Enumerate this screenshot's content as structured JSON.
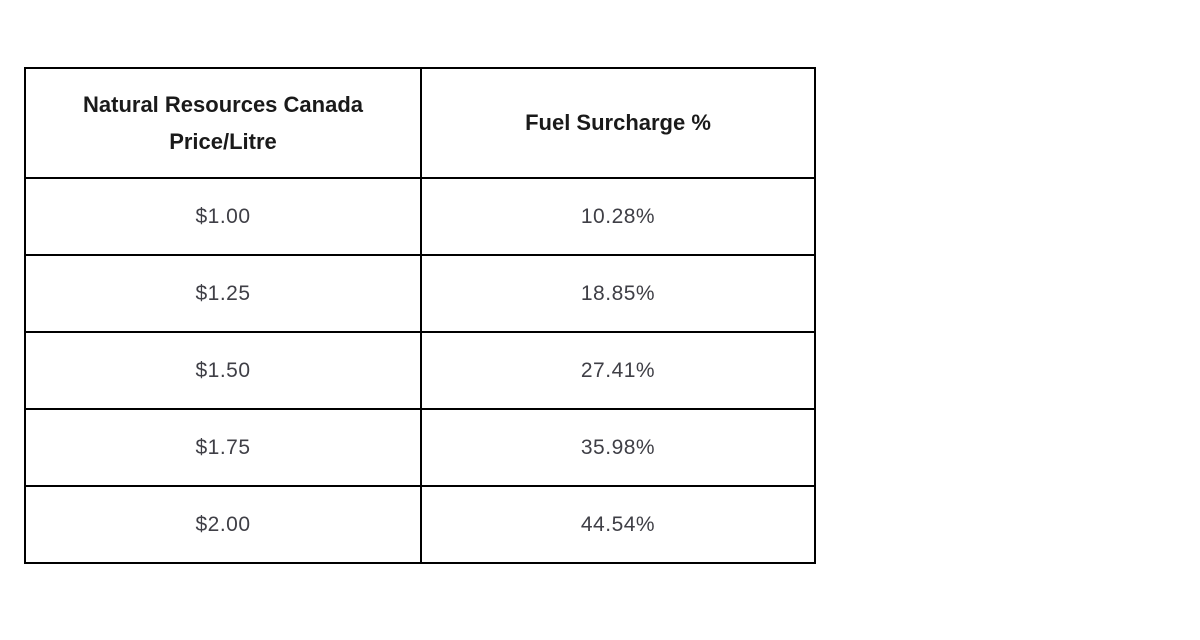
{
  "table": {
    "columns": [
      {
        "label": "Natural Resources Canada Price/Litre"
      },
      {
        "label": "Fuel Surcharge %"
      }
    ],
    "rows": [
      {
        "price": "$1.00",
        "surcharge": "10.28%"
      },
      {
        "price": "$1.25",
        "surcharge": "18.85%"
      },
      {
        "price": "$1.50",
        "surcharge": "27.41%"
      },
      {
        "price": "$1.75",
        "surcharge": "35.98%"
      },
      {
        "price": "$2.00",
        "surcharge": "44.54%"
      }
    ]
  },
  "colors": {
    "border": "#000000",
    "header_text": "#1a1a1a",
    "body_text": "#3f3f46",
    "background": "#ffffff"
  }
}
